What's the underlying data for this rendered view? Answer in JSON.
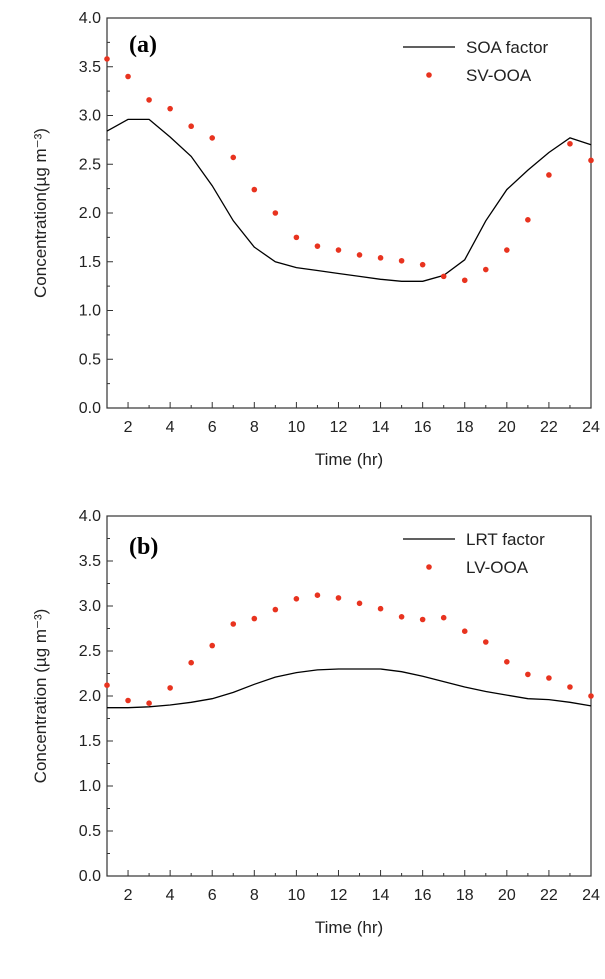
{
  "chart_data": [
    {
      "type": "line",
      "panel_label": "(a)",
      "xlabel": "Time (hr)",
      "ylabel": "Concentration(µg m⁻³)",
      "xlim": [
        1,
        24
      ],
      "ylim": [
        0.0,
        4.0
      ],
      "x_ticks": [
        2,
        4,
        6,
        8,
        10,
        12,
        14,
        16,
        18,
        20,
        22,
        24
      ],
      "y_ticks": [
        "0.0",
        "0.5",
        "1.0",
        "1.5",
        "2.0",
        "2.5",
        "3.0",
        "3.5",
        "4.0"
      ],
      "legend_position": "top-right",
      "series": [
        {
          "name": "SOA factor",
          "style": "line",
          "color": "#000000",
          "x": [
            1,
            2,
            3,
            4,
            5,
            6,
            7,
            8,
            9,
            10,
            11,
            12,
            13,
            14,
            15,
            16,
            17,
            18,
            19,
            20,
            21,
            22,
            23,
            24
          ],
          "values": [
            2.84,
            2.96,
            2.96,
            2.78,
            2.58,
            2.28,
            1.92,
            1.65,
            1.5,
            1.44,
            1.41,
            1.38,
            1.35,
            1.32,
            1.3,
            1.3,
            1.36,
            1.52,
            1.92,
            2.24,
            2.44,
            2.62,
            2.77,
            2.7
          ]
        },
        {
          "name": "SV-OOA",
          "style": "dots",
          "color": "#e8331f",
          "x": [
            1,
            2,
            3,
            4,
            5,
            6,
            7,
            8,
            9,
            10,
            11,
            12,
            13,
            14,
            15,
            16,
            17,
            18,
            19,
            20,
            21,
            22,
            23,
            24
          ],
          "values": [
            3.58,
            3.4,
            3.16,
            3.07,
            2.89,
            2.77,
            2.57,
            2.24,
            2.0,
            1.75,
            1.66,
            1.62,
            1.57,
            1.54,
            1.51,
            1.47,
            1.35,
            1.31,
            1.42,
            1.62,
            1.93,
            2.39,
            2.71,
            2.54
          ]
        }
      ]
    },
    {
      "type": "line",
      "panel_label": "(b)",
      "xlabel": "Time (hr)",
      "ylabel": "Concentration (µg m⁻³)",
      "xlim": [
        1,
        24
      ],
      "ylim": [
        0.0,
        4.0
      ],
      "x_ticks": [
        2,
        4,
        6,
        8,
        10,
        12,
        14,
        16,
        18,
        20,
        22,
        24
      ],
      "y_ticks": [
        "0.0",
        "0.5",
        "1.0",
        "1.5",
        "2.0",
        "2.5",
        "3.0",
        "3.5",
        "4.0"
      ],
      "legend_position": "top-right",
      "series": [
        {
          "name": "LRT factor",
          "style": "line",
          "color": "#000000",
          "x": [
            1,
            2,
            3,
            4,
            5,
            6,
            7,
            8,
            9,
            10,
            11,
            12,
            13,
            14,
            15,
            16,
            17,
            18,
            19,
            20,
            21,
            22,
            23,
            24
          ],
          "values": [
            1.87,
            1.87,
            1.88,
            1.9,
            1.93,
            1.97,
            2.04,
            2.13,
            2.21,
            2.26,
            2.29,
            2.3,
            2.3,
            2.3,
            2.27,
            2.22,
            2.16,
            2.1,
            2.05,
            2.01,
            1.97,
            1.96,
            1.93,
            1.89
          ]
        },
        {
          "name": "LV-OOA",
          "style": "dots",
          "color": "#e8331f",
          "x": [
            1,
            2,
            3,
            4,
            5,
            6,
            7,
            8,
            9,
            10,
            11,
            12,
            13,
            14,
            15,
            16,
            17,
            18,
            19,
            20,
            21,
            22,
            23,
            24
          ],
          "values": [
            2.12,
            1.95,
            1.92,
            2.09,
            2.37,
            2.56,
            2.8,
            2.86,
            2.96,
            3.08,
            3.12,
            3.09,
            3.03,
            2.97,
            2.88,
            2.85,
            2.87,
            2.72,
            2.6,
            2.38,
            2.24,
            2.2,
            2.1,
            2.0
          ]
        }
      ]
    }
  ]
}
